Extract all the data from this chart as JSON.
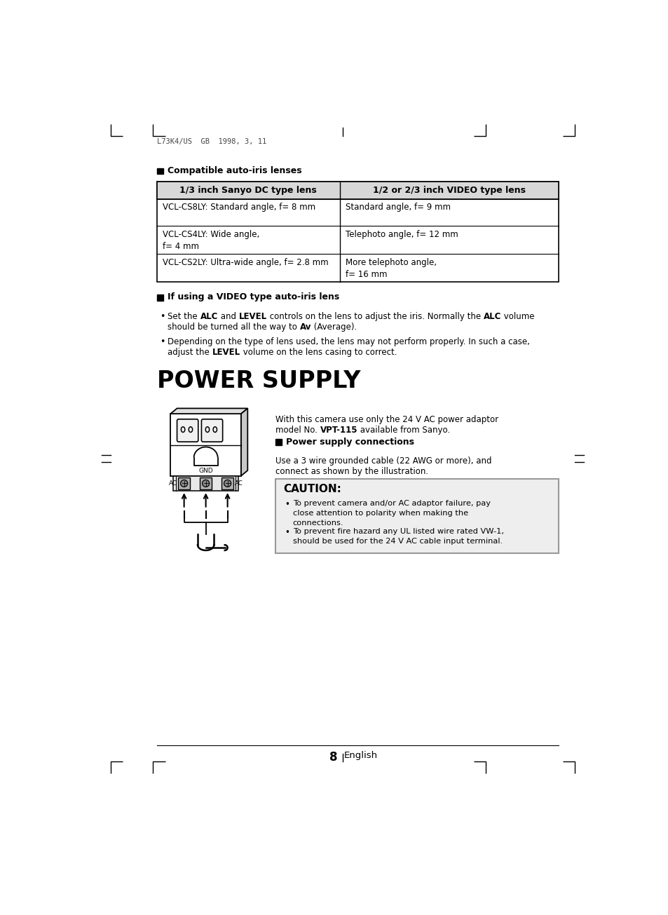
{
  "bg_color": "#ffffff",
  "page_width": 9.54,
  "page_height": 13.05,
  "header_text": "L73K4/US  GB  1998, 3, 11",
  "footer_text": "8",
  "footer_subtext": "English",
  "section1_heading": "Compatible auto-iris lenses",
  "table_header_left": "1/3 inch Sanyo DC type lens",
  "table_header_right": "1/2 or 2/3 inch VIDEO type lens",
  "table_rows": [
    [
      "VCL-CS8LY: Standard angle, f= 8 mm",
      "Standard angle, f= 9 mm"
    ],
    [
      "VCL-CS4LY: Wide angle,\nf= 4 mm",
      "Telephoto angle, f= 12 mm"
    ],
    [
      "VCL-CS2LY: Ultra-wide angle, f= 2.8 mm",
      "More telephoto angle,\nf= 16 mm"
    ]
  ],
  "section2_heading": "If using a VIDEO type auto-iris lens",
  "ps_title": "POWER SUPPLY",
  "ps_conn_heading": "Power supply connections",
  "caution_title": "CAUTION:",
  "caution_bullet1": "To prevent camera and/or AC adaptor failure, pay\nclose attention to polarity when making the\nconnections.",
  "caution_bullet2": "To prevent fire hazard any UL listed wire rated VW-1,\nshould be used for the 24 V AC cable input terminal."
}
